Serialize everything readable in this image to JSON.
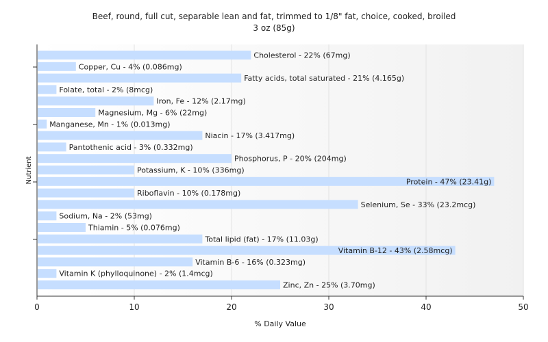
{
  "chart_data": {
    "type": "bar",
    "orientation": "horizontal",
    "title": "Beef, round, full cut, separable lean and fat, trimmed to 1/8\" fat, choice, cooked, broiled",
    "subtitle": "3 oz (85g)",
    "xlabel": "% Daily Value",
    "ylabel": "Nutrient",
    "xlim": [
      0,
      50
    ],
    "xticks": [
      0,
      10,
      20,
      30,
      40,
      50
    ],
    "grid": true,
    "bar_color": "#c6deff",
    "categories": [
      "Cholesterol",
      "Copper, Cu",
      "Fatty acids, total saturated",
      "Folate, total",
      "Iron, Fe",
      "Magnesium, Mg",
      "Manganese, Mn",
      "Niacin",
      "Pantothenic acid",
      "Phosphorus, P",
      "Potassium, K",
      "Protein",
      "Riboflavin",
      "Selenium, Se",
      "Sodium, Na",
      "Thiamin",
      "Total lipid (fat)",
      "Vitamin B-12",
      "Vitamin B-6",
      "Vitamin K (phylloquinone)",
      "Zinc, Zn"
    ],
    "values": [
      22,
      4,
      21,
      2,
      12,
      6,
      1,
      17,
      3,
      20,
      10,
      47,
      10,
      33,
      2,
      5,
      17,
      43,
      16,
      2,
      25
    ],
    "labels": [
      "Cholesterol - 22% (67mg)",
      "Copper, Cu - 4% (0.086mg)",
      "Fatty acids, total saturated - 21% (4.165g)",
      "Folate, total - 2% (8mcg)",
      "Iron, Fe - 12% (2.17mg)",
      "Magnesium, Mg - 6% (22mg)",
      "Manganese, Mn - 1% (0.013mg)",
      "Niacin - 17% (3.417mg)",
      "Pantothenic acid - 3% (0.332mg)",
      "Phosphorus, P - 20% (204mg)",
      "Potassium, K - 10% (336mg)",
      "Protein - 47% (23.41g)",
      "Riboflavin - 10% (0.178mg)",
      "Selenium, Se - 33% (23.2mcg)",
      "Sodium, Na - 2% (53mg)",
      "Thiamin - 5% (0.076mg)",
      "Total lipid (fat) - 17% (11.03g)",
      "Vitamin B-12 - 43% (2.58mcg)",
      "Vitamin B-6 - 16% (0.323mg)",
      "Vitamin K (phylloquinone) - 2% (1.4mcg)",
      "Zinc, Zn - 25% (3.70mg)"
    ]
  }
}
